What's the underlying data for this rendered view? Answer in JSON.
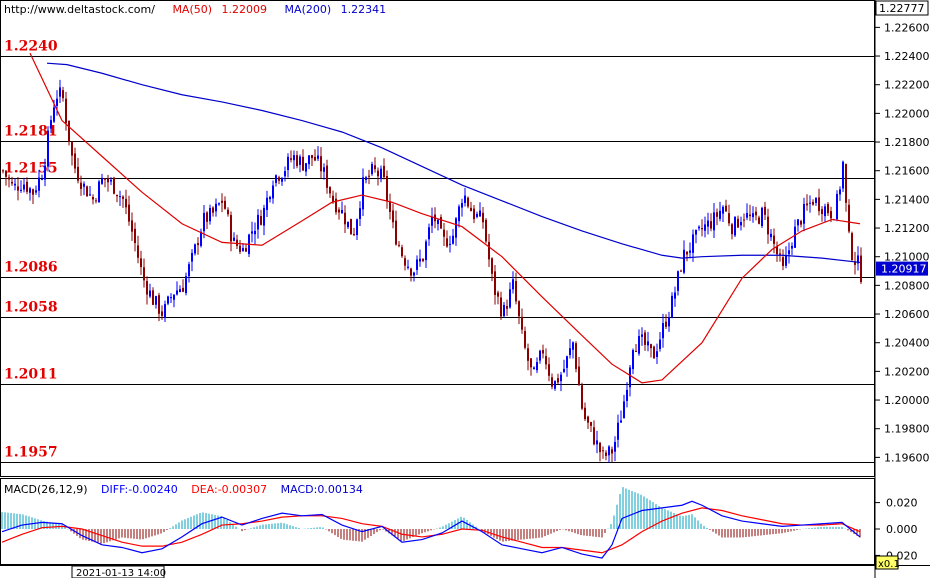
{
  "header": {
    "site": "http://www.deltastock.com/",
    "ma50_label": "MA(50)",
    "ma50_value": "1.22009",
    "ma200_label": "MA(200)",
    "ma200_value": "1.22341"
  },
  "price_axis": {
    "top_label": "1.22777",
    "last_price": "1.20917",
    "ticks": [
      "1.22600",
      "1.22400",
      "1.22200",
      "1.22000",
      "1.21800",
      "1.21600",
      "1.21400",
      "1.21200",
      "1.21000",
      "1.20800",
      "1.20600",
      "1.20400",
      "1.20200",
      "1.20000",
      "1.19800",
      "1.19600"
    ]
  },
  "macd_header": {
    "name": "MACD(26,12,9)",
    "diff": "DIFF:-0.00240",
    "dea": "DEA:-0.00307",
    "macd": "MACD:0.00134"
  },
  "macd_axis": {
    "ticks": [
      "0.020",
      "0.000",
      "-0.020"
    ],
    "scale_label": "x0.1"
  },
  "time_axis": {
    "label": "2021-01-13 14:00"
  },
  "colors": {
    "up_candle": "#0000ff",
    "down_candle": "#8b0000",
    "ma50": "#e00000",
    "ma200": "#0000cc",
    "diff": "#0000ff",
    "dea": "#ff0000",
    "level_text": "#e00000"
  },
  "chart_data": [
    {
      "type": "candlestick",
      "title": "",
      "ylim": [
        1.1947,
        1.22777
      ],
      "levels": [
        {
          "label": "1.2240",
          "value": 1.224
        },
        {
          "label": "1.2181",
          "value": 1.2181
        },
        {
          "label": "1.2155",
          "value": 1.2155
        },
        {
          "label": "1.2086",
          "value": 1.2086
        },
        {
          "label": "1.2058",
          "value": 1.2058
        },
        {
          "label": "1.2011",
          "value": 1.2011
        },
        {
          "label": "1.1957",
          "value": 1.1957
        }
      ],
      "close_path": [
        [
          0,
          1.216
        ],
        [
          10,
          1.2148
        ],
        [
          20,
          1.2152
        ],
        [
          30,
          1.2145
        ],
        [
          40,
          1.216
        ],
        [
          50,
          1.2205
        ],
        [
          55,
          1.2215
        ],
        [
          60,
          1.221
        ],
        [
          70,
          1.2165
        ],
        [
          80,
          1.215
        ],
        [
          90,
          1.214
        ],
        [
          100,
          1.2155
        ],
        [
          110,
          1.215
        ],
        [
          120,
          1.214
        ],
        [
          130,
          1.2115
        ],
        [
          140,
          1.2085
        ],
        [
          150,
          1.207
        ],
        [
          160,
          1.206
        ],
        [
          170,
          1.2075
        ],
        [
          180,
          1.208
        ],
        [
          190,
          1.21
        ],
        [
          200,
          1.2125
        ],
        [
          210,
          1.213
        ],
        [
          220,
          1.214
        ],
        [
          230,
          1.211
        ],
        [
          240,
          1.2105
        ],
        [
          250,
          1.212
        ],
        [
          260,
          1.213
        ],
        [
          270,
          1.2155
        ],
        [
          280,
          1.216
        ],
        [
          290,
          1.217
        ],
        [
          300,
          1.2165
        ],
        [
          310,
          1.217
        ],
        [
          320,
          1.216
        ],
        [
          330,
          1.214
        ],
        [
          340,
          1.213
        ],
        [
          350,
          1.2115
        ],
        [
          360,
          1.215
        ],
        [
          370,
          1.216
        ],
        [
          380,
          1.2155
        ],
        [
          390,
          1.212
        ],
        [
          400,
          1.21
        ],
        [
          410,
          1.209
        ],
        [
          420,
          1.21
        ],
        [
          430,
          1.213
        ],
        [
          440,
          1.211
        ],
        [
          450,
          1.2115
        ],
        [
          460,
          1.2145
        ],
        [
          470,
          1.213
        ],
        [
          480,
          1.2125
        ],
        [
          490,
          1.208
        ],
        [
          500,
          1.206
        ],
        [
          510,
          1.208
        ],
        [
          520,
          1.204
        ],
        [
          530,
          1.2015
        ],
        [
          540,
          1.2035
        ],
        [
          550,
          1.201
        ],
        [
          560,
          1.202
        ],
        [
          570,
          1.204
        ],
        [
          580,
          1.199
        ],
        [
          590,
          1.1975
        ],
        [
          600,
          1.196
        ],
        [
          610,
          1.1965
        ],
        [
          620,
          1.1995
        ],
        [
          630,
          1.204
        ],
        [
          640,
          1.204
        ],
        [
          650,
          1.203
        ],
        [
          660,
          1.205
        ],
        [
          670,
          1.207
        ],
        [
          680,
          1.21
        ],
        [
          690,
          1.211
        ],
        [
          700,
          1.212
        ],
        [
          710,
          1.2125
        ],
        [
          720,
          1.2135
        ],
        [
          730,
          1.212
        ],
        [
          740,
          1.213
        ],
        [
          750,
          1.2125
        ],
        [
          760,
          1.213
        ],
        [
          770,
          1.211
        ],
        [
          780,
          1.209
        ],
        [
          790,
          1.2115
        ],
        [
          800,
          1.213
        ],
        [
          810,
          1.214
        ],
        [
          820,
          1.2135
        ],
        [
          830,
          1.213
        ],
        [
          835,
          1.214
        ],
        [
          840,
          1.2165
        ],
        [
          845,
          1.2115
        ],
        [
          850,
          1.21
        ],
        [
          855,
          1.2095
        ],
        [
          858,
          1.2088
        ]
      ],
      "ma50_path": [
        [
          28,
          1.2242
        ],
        [
          60,
          1.2195
        ],
        [
          100,
          1.217
        ],
        [
          140,
          1.2145
        ],
        [
          180,
          1.2123
        ],
        [
          220,
          1.211
        ],
        [
          260,
          1.2108
        ],
        [
          300,
          1.2125
        ],
        [
          330,
          1.2138
        ],
        [
          360,
          1.2143
        ],
        [
          390,
          1.2138
        ],
        [
          420,
          1.213
        ],
        [
          460,
          1.2121
        ],
        [
          500,
          1.21
        ],
        [
          540,
          1.2072
        ],
        [
          580,
          1.2045
        ],
        [
          610,
          1.2025
        ],
        [
          640,
          1.2012
        ],
        [
          660,
          1.2014
        ],
        [
          700,
          1.204
        ],
        [
          740,
          1.2085
        ],
        [
          770,
          1.2105
        ],
        [
          800,
          1.2118
        ],
        [
          830,
          1.2126
        ],
        [
          858,
          1.2123
        ]
      ],
      "ma200_path": [
        [
          45,
          1.2235
        ],
        [
          65,
          1.2234
        ],
        [
          100,
          1.2228
        ],
        [
          140,
          1.222
        ],
        [
          180,
          1.2213
        ],
        [
          220,
          1.2208
        ],
        [
          260,
          1.2202
        ],
        [
          300,
          1.2195
        ],
        [
          340,
          1.2187
        ],
        [
          380,
          1.2176
        ],
        [
          420,
          1.2163
        ],
        [
          460,
          1.215
        ],
        [
          500,
          1.2139
        ],
        [
          540,
          1.2128
        ],
        [
          580,
          1.2118
        ],
        [
          620,
          1.2109
        ],
        [
          660,
          1.2101
        ],
        [
          680,
          1.2099
        ],
        [
          700,
          1.21
        ],
        [
          740,
          1.2101
        ],
        [
          780,
          1.2101
        ],
        [
          820,
          1.2099
        ],
        [
          858,
          1.2096
        ]
      ]
    },
    {
      "type": "macd",
      "title": "MACD(26,12,9)",
      "ylim": [
        -0.025,
        0.025
      ],
      "diff_path": [
        [
          0,
          -0.002
        ],
        [
          20,
          0.003
        ],
        [
          40,
          0.005
        ],
        [
          60,
          0.004
        ],
        [
          80,
          -0.005
        ],
        [
          100,
          -0.012
        ],
        [
          120,
          -0.014
        ],
        [
          140,
          -0.018
        ],
        [
          160,
          -0.015
        ],
        [
          180,
          -0.006
        ],
        [
          200,
          0.004
        ],
        [
          220,
          0.009
        ],
        [
          240,
          0.003
        ],
        [
          260,
          0.008
        ],
        [
          280,
          0.012
        ],
        [
          300,
          0.01
        ],
        [
          320,
          0.011
        ],
        [
          340,
          0.003
        ],
        [
          360,
          -0.002
        ],
        [
          380,
          0.002
        ],
        [
          400,
          -0.01
        ],
        [
          420,
          -0.008
        ],
        [
          440,
          -0.003
        ],
        [
          460,
          0.006
        ],
        [
          480,
          -0.002
        ],
        [
          500,
          -0.012
        ],
        [
          520,
          -0.015
        ],
        [
          540,
          -0.018
        ],
        [
          560,
          -0.014
        ],
        [
          580,
          -0.019
        ],
        [
          600,
          -0.022
        ],
        [
          610,
          -0.012
        ],
        [
          620,
          0.008
        ],
        [
          640,
          0.014
        ],
        [
          660,
          0.016
        ],
        [
          680,
          0.018
        ],
        [
          690,
          0.021
        ],
        [
          700,
          0.018
        ],
        [
          720,
          0.01
        ],
        [
          740,
          0.006
        ],
        [
          760,
          0.004
        ],
        [
          780,
          0.002
        ],
        [
          800,
          0.003
        ],
        [
          820,
          0.004
        ],
        [
          840,
          0.005
        ],
        [
          858,
          -0.006
        ]
      ],
      "dea_path": [
        [
          0,
          -0.01
        ],
        [
          20,
          -0.004
        ],
        [
          40,
          0.001
        ],
        [
          60,
          0.002
        ],
        [
          80,
          0.0
        ],
        [
          100,
          -0.005
        ],
        [
          120,
          -0.01
        ],
        [
          140,
          -0.013
        ],
        [
          160,
          -0.013
        ],
        [
          180,
          -0.01
        ],
        [
          200,
          -0.004
        ],
        [
          220,
          0.003
        ],
        [
          240,
          0.004
        ],
        [
          260,
          0.006
        ],
        [
          280,
          0.009
        ],
        [
          300,
          0.01
        ],
        [
          320,
          0.01
        ],
        [
          340,
          0.008
        ],
        [
          360,
          0.004
        ],
        [
          380,
          0.002
        ],
        [
          400,
          -0.004
        ],
        [
          420,
          -0.006
        ],
        [
          440,
          -0.004
        ],
        [
          460,
          0.0
        ],
        [
          480,
          -0.001
        ],
        [
          500,
          -0.006
        ],
        [
          520,
          -0.01
        ],
        [
          540,
          -0.014
        ],
        [
          560,
          -0.014
        ],
        [
          580,
          -0.016
        ],
        [
          600,
          -0.018
        ],
        [
          620,
          -0.012
        ],
        [
          640,
          -0.002
        ],
        [
          660,
          0.006
        ],
        [
          680,
          0.012
        ],
        [
          700,
          0.016
        ],
        [
          720,
          0.014
        ],
        [
          740,
          0.01
        ],
        [
          760,
          0.007
        ],
        [
          780,
          0.004
        ],
        [
          800,
          0.003
        ],
        [
          820,
          0.003
        ],
        [
          840,
          0.004
        ],
        [
          858,
          -0.002
        ]
      ]
    }
  ]
}
